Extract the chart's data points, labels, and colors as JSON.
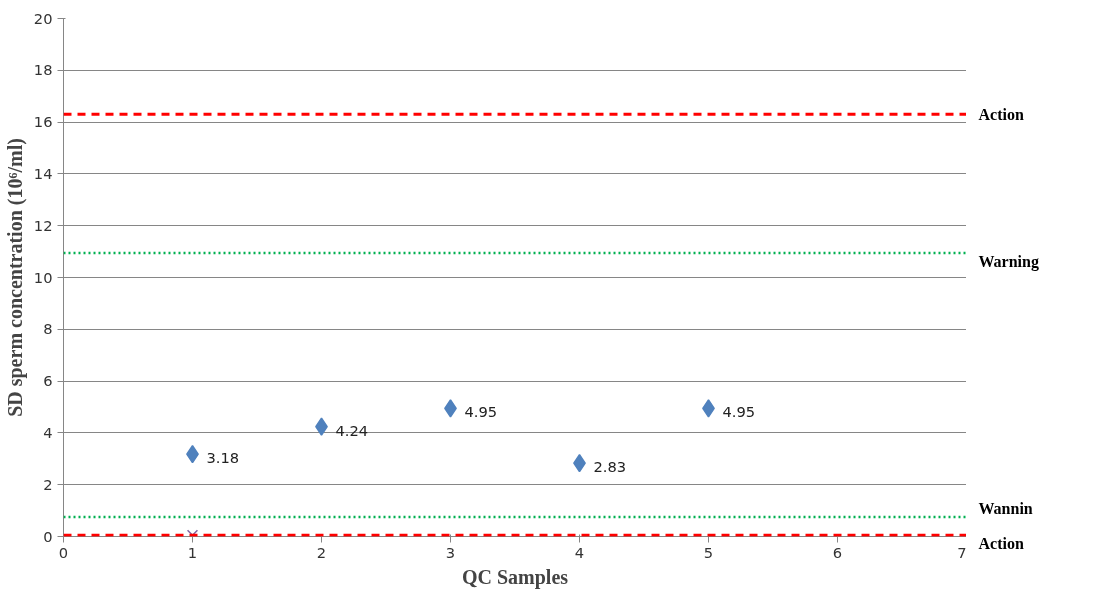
{
  "chart_data": {
    "type": "scatter",
    "xlabel": "QC Samples",
    "ylabel": "SD sperm concentration (10⁶/ml)",
    "xlim": [
      0,
      7
    ],
    "ylim": [
      0,
      20
    ],
    "xticks": [
      0,
      1,
      2,
      3,
      4,
      5,
      6,
      7
    ],
    "yticks": [
      0,
      2,
      4,
      6,
      8,
      10,
      12,
      14,
      16,
      18,
      20
    ],
    "grid": "y",
    "series": [
      {
        "x": [
          1,
          2,
          3,
          4,
          5
        ],
        "values": [
          3.18,
          4.24,
          4.95,
          2.83,
          4.95
        ],
        "color": "#4f81bd",
        "marker": "diamond",
        "value_labels": [
          "3.18",
          "4.24",
          "4.95",
          "2.83",
          "4.95"
        ]
      },
      {
        "x": [
          1
        ],
        "values": [
          0.05
        ],
        "color": "#8064a2",
        "marker": "cross"
      }
    ],
    "ref_lines": [
      {
        "axis": "y",
        "value": 16.3,
        "label": "Action",
        "color": "#ff0000",
        "line_style": "dashed"
      },
      {
        "axis": "y",
        "value": 10.95,
        "label": "Warning",
        "color": "#00b050",
        "line_style": "dotted"
      },
      {
        "axis": "y",
        "value": 0.75,
        "label": "Wannin",
        "color": "#00b050",
        "line_style": "dotted"
      },
      {
        "axis": "y",
        "value": 0.05,
        "label": "Action",
        "color": "#ff0000",
        "line_style": "dashed"
      }
    ]
  }
}
